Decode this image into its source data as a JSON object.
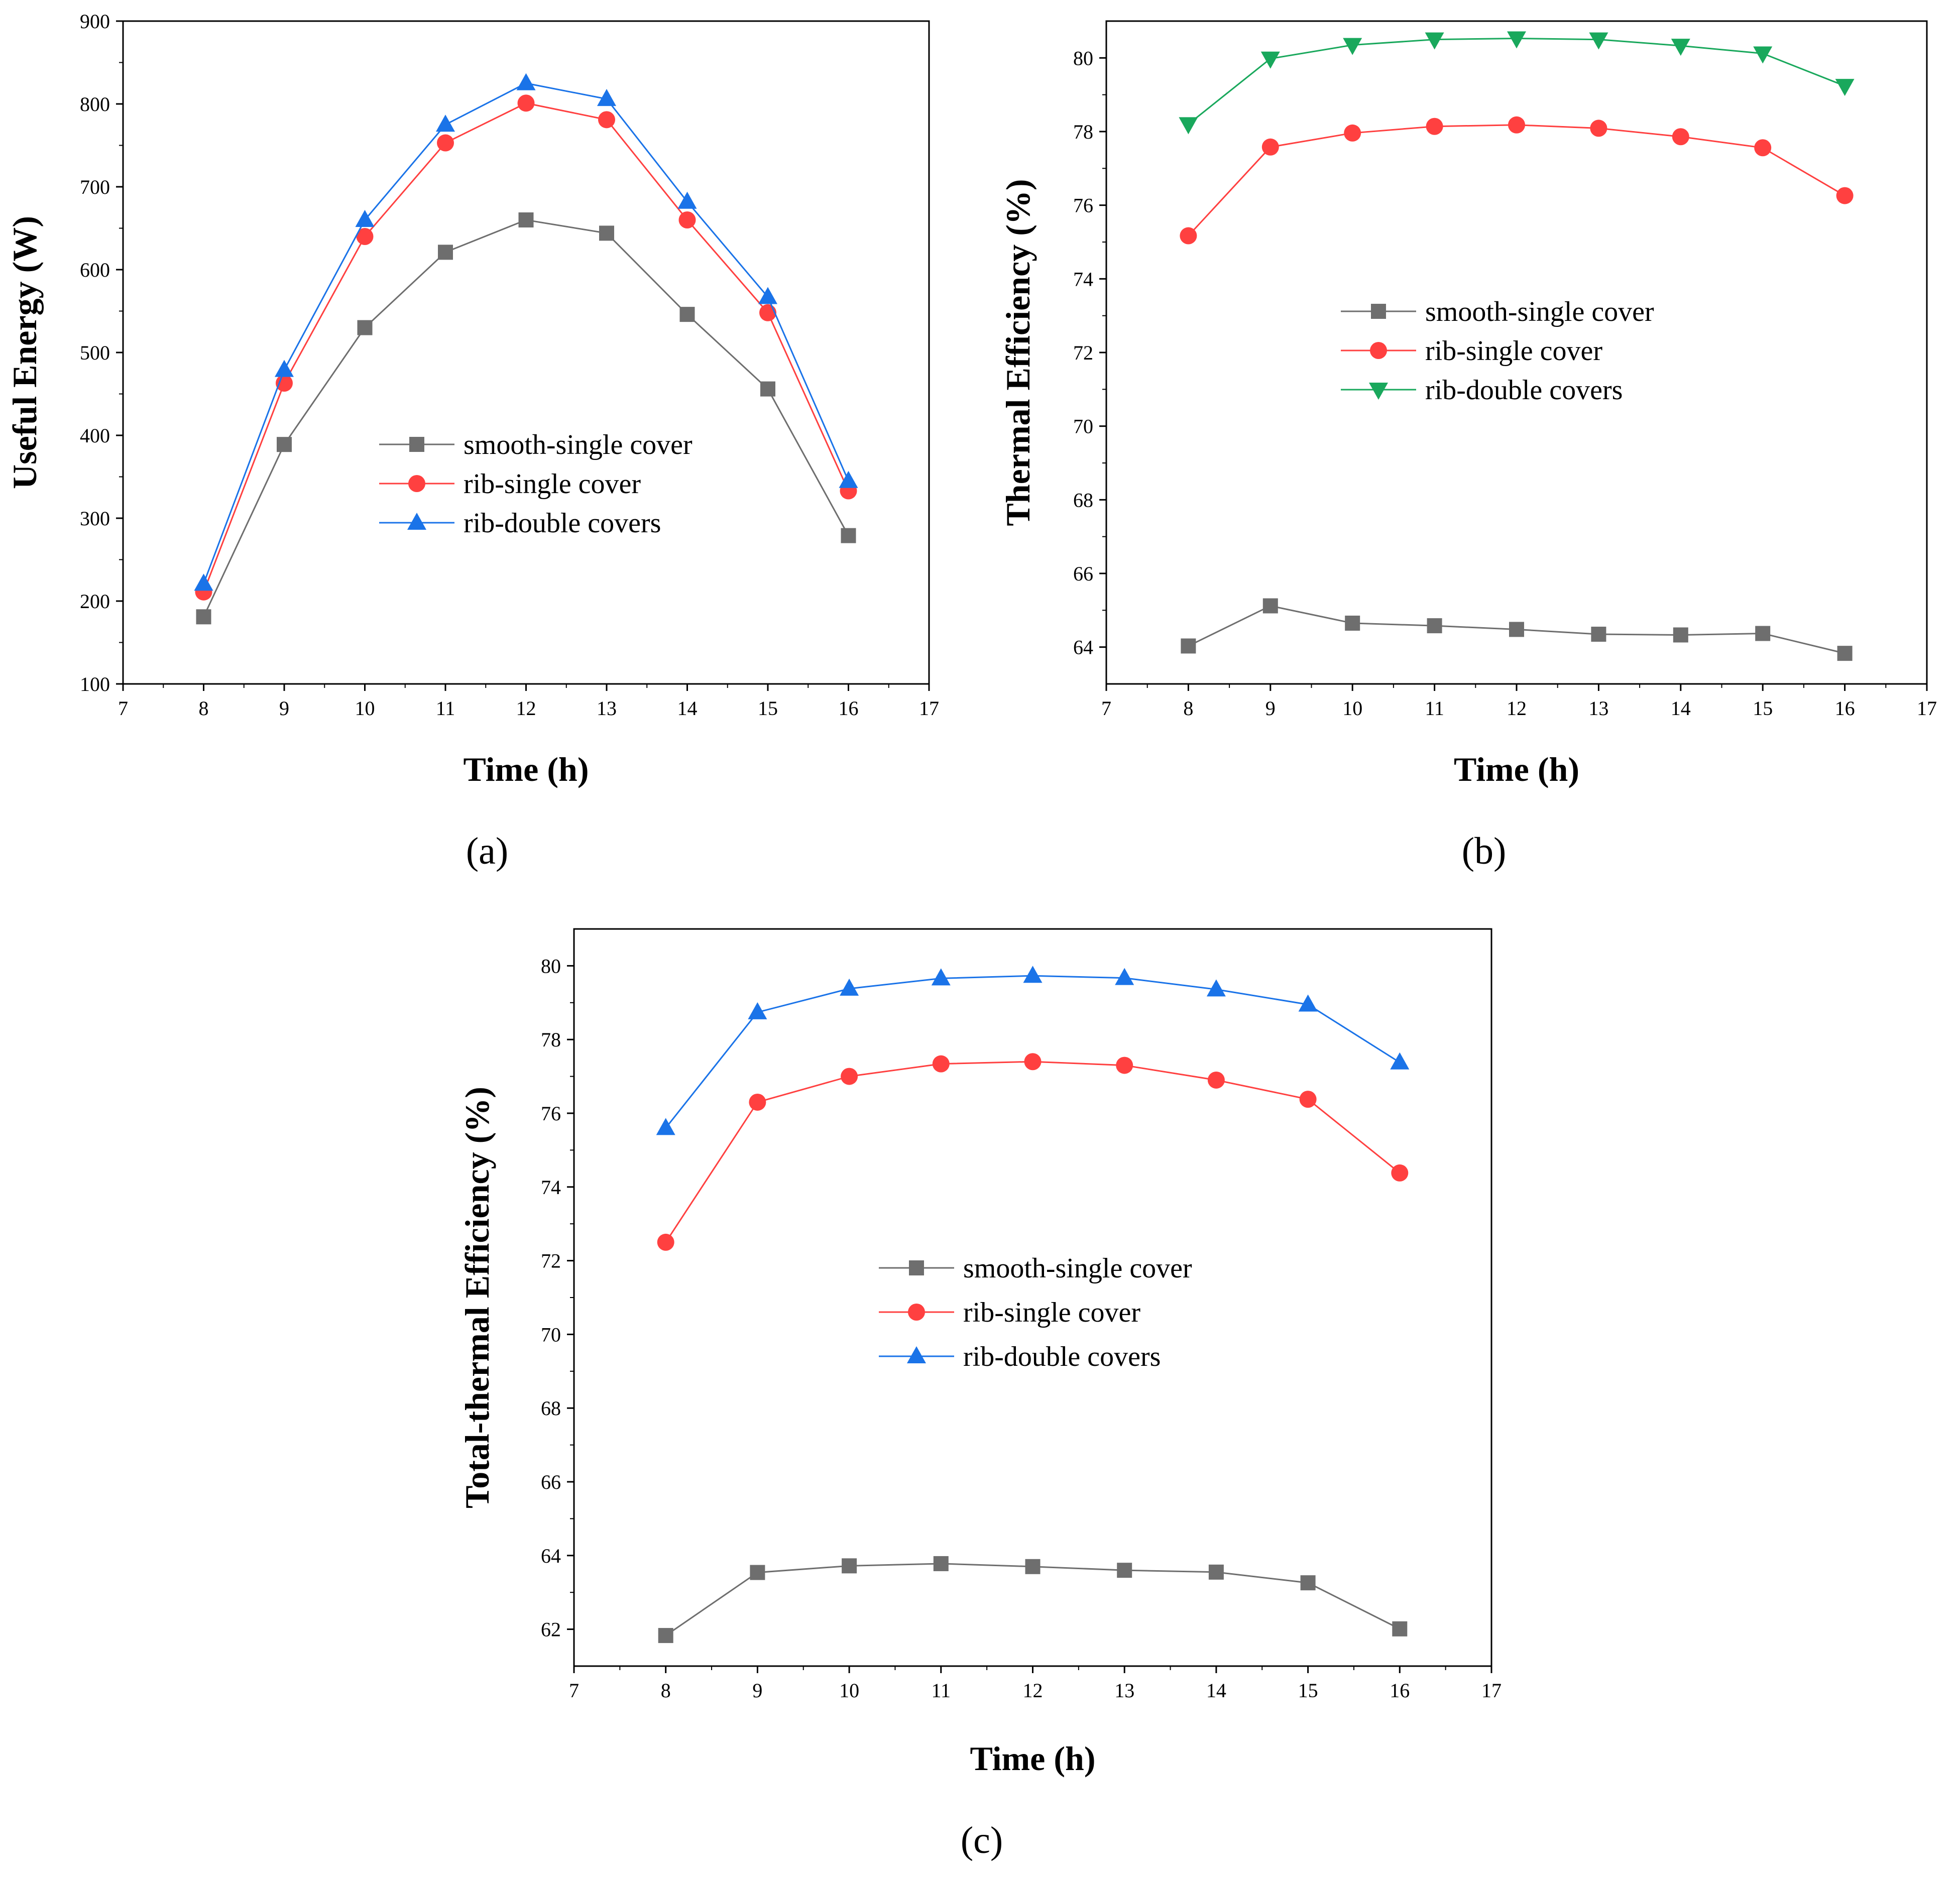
{
  "series_styles": [
    {
      "color": "#6e6e6e",
      "marker": "square"
    },
    {
      "color": "#ff4040",
      "marker": "circle"
    },
    {
      "color": "#1a73e8",
      "marker": "triangle-up"
    },
    {
      "color": "#19a85c",
      "marker": "triangle-down"
    }
  ],
  "chart_data": [
    {
      "type": "line",
      "panel_label": "(a)",
      "xlabel": "Time (h)",
      "ylabel": "Useful Energy (W)",
      "xlim": [
        7,
        17
      ],
      "ylim": [
        100,
        900
      ],
      "xticks": [
        7,
        8,
        9,
        10,
        11,
        12,
        13,
        14,
        15,
        16,
        17
      ],
      "yticks": [
        100,
        200,
        300,
        400,
        500,
        600,
        700,
        800,
        900
      ],
      "legend_position": "center-right",
      "x": [
        8,
        9,
        10,
        11,
        12,
        13,
        14,
        15,
        16
      ],
      "series": [
        {
          "name": "smooth-single cover",
          "style": 0,
          "values": [
            181,
            389,
            530,
            621,
            660,
            644,
            546,
            456,
            279
          ]
        },
        {
          "name": "rib-single cover",
          "style": 1,
          "values": [
            211,
            463,
            640,
            753,
            801,
            781,
            660,
            548,
            333
          ]
        },
        {
          "name": "rib-double covers",
          "style": 2,
          "values": [
            221,
            479,
            660,
            775,
            825,
            806,
            682,
            567,
            345
          ]
        }
      ]
    },
    {
      "type": "line",
      "panel_label": "(b)",
      "xlabel": "Time (h)",
      "ylabel": "Thermal Efficiency (%)",
      "xlim": [
        7,
        17
      ],
      "ylim": [
        63,
        81
      ],
      "xticks": [
        7,
        8,
        9,
        10,
        11,
        12,
        13,
        14,
        15,
        16,
        17
      ],
      "yticks": [
        64,
        66,
        68,
        70,
        72,
        74,
        76,
        78,
        80
      ],
      "legend_position": "center",
      "x": [
        8,
        9,
        10,
        11,
        12,
        13,
        14,
        15,
        16
      ],
      "series": [
        {
          "name": "smooth-single cover",
          "style": 0,
          "values": [
            64.03,
            65.12,
            64.65,
            64.58,
            64.48,
            64.35,
            64.33,
            64.37,
            63.83
          ]
        },
        {
          "name": "rib-single cover",
          "style": 1,
          "values": [
            75.17,
            77.58,
            77.96,
            78.14,
            78.18,
            78.09,
            77.86,
            77.56,
            76.26
          ]
        },
        {
          "name": "rib-double covers",
          "style": 3,
          "values": [
            78.2,
            79.98,
            80.35,
            80.5,
            80.53,
            80.5,
            80.33,
            80.12,
            79.24
          ]
        }
      ]
    },
    {
      "type": "line",
      "panel_label": "(c)",
      "xlabel": "Time (h)",
      "ylabel": "Total-thermal Efficiency (%)",
      "xlim": [
        7,
        17
      ],
      "ylim": [
        61,
        81
      ],
      "xticks": [
        7,
        8,
        9,
        10,
        11,
        12,
        13,
        14,
        15,
        16,
        17
      ],
      "yticks": [
        62,
        64,
        66,
        68,
        70,
        72,
        74,
        76,
        78,
        80
      ],
      "legend_position": "center",
      "x": [
        8,
        9,
        10,
        11,
        12,
        13,
        14,
        15,
        16
      ],
      "series": [
        {
          "name": "smooth-single cover",
          "style": 0,
          "values": [
            61.83,
            63.54,
            63.72,
            63.78,
            63.7,
            63.6,
            63.55,
            63.26,
            62.01
          ]
        },
        {
          "name": "rib-single cover",
          "style": 1,
          "values": [
            72.5,
            76.3,
            77.0,
            77.34,
            77.4,
            77.3,
            76.9,
            76.38,
            74.38
          ]
        },
        {
          "name": "rib-double covers",
          "style": 2,
          "values": [
            75.6,
            78.74,
            79.38,
            79.66,
            79.73,
            79.67,
            79.36,
            78.95,
            77.38
          ]
        }
      ]
    }
  ]
}
